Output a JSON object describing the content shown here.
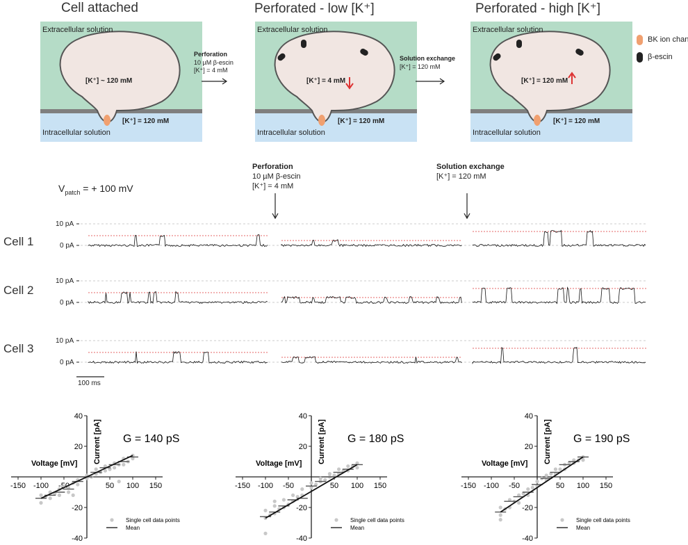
{
  "top": {
    "panels": [
      {
        "title": "Cell attached",
        "extra": "Extracellular solution",
        "intra": "Intracellular solution",
        "inner_conc": "[K⁺] ~ 120 mM",
        "outer_conc": "[K⁺] = 120 mM"
      },
      {
        "title": "Perforated - low [K⁺]",
        "extra": "Extracellular solution",
        "intra": "Intracellular solution",
        "inner_conc": "[K⁺] = 4 mM",
        "outer_conc": "[K⁺] = 120 mM"
      },
      {
        "title": "Perforated - high [K⁺]",
        "extra": "Extracellular solution",
        "intra": "Intracellular solution",
        "inner_conc": "[K⁺] = 120 mM",
        "outer_conc": "[K⁺] = 120 mM"
      }
    ],
    "arrow1": {
      "title": "Perforation",
      "line1": "10 µM β-escin",
      "line2": "[K⁺] = 4 mM"
    },
    "arrow2": {
      "title": "Solution exchange",
      "line1": "[K⁺] = 120 mM"
    },
    "legend": {
      "channel": "BK ion channel",
      "escin": "β-escin"
    },
    "colors": {
      "extra": "#b5dcc7",
      "intra": "#c9e2f4",
      "cell": "#f1e6e2",
      "channel": "#f0a070",
      "membrane": "#7f7f7f"
    }
  },
  "traces": {
    "vpatch": {
      "v": "V",
      "sub": "patch",
      "rest": " = + 100 mV"
    },
    "perforation": {
      "title": "Perforation",
      "line1": "10 µM β-escin",
      "line2": "[K⁺] = 4 mM"
    },
    "exchange": {
      "title": "Solution exchange",
      "line1": "[K⁺] = 120 mM"
    },
    "cells": [
      {
        "label": "Cell 1",
        "top_tick": "10 pA",
        "bottom_tick": "0 pA"
      },
      {
        "label": "Cell 2",
        "top_tick": "10 pA",
        "bottom_tick": "0 pA"
      },
      {
        "label": "Cell 3",
        "top_tick": "10 pA",
        "bottom_tick": "0 pA"
      }
    ],
    "scale_bar": "100 ms"
  },
  "chart_data": [
    {
      "type": "scatter",
      "title": "G = 140 pS",
      "xlabel": "Voltage [mV]",
      "ylabel": "Current [pA]",
      "xlim": [
        -150,
        150
      ],
      "ylim": [
        -40,
        40
      ],
      "xticks": [
        "-150",
        "-100",
        "-50",
        "50",
        "100",
        "150"
      ],
      "yticks": [
        "40",
        "20",
        "-20",
        "-40"
      ],
      "legend": [
        "Single cell data points",
        "Mean"
      ],
      "fit": {
        "x": [
          -100,
          100
        ],
        "y": [
          -14,
          14
        ]
      },
      "series": [
        {
          "name": "Single cell data points",
          "x": [
            -100,
            -100,
            -80,
            -80,
            -60,
            -60,
            -40,
            -40,
            -20,
            -20,
            0,
            0,
            20,
            20,
            40,
            40,
            60,
            60,
            80,
            80,
            100,
            100,
            -90,
            -70,
            -50,
            -30,
            10,
            30,
            50,
            70,
            90,
            -30,
            70
          ],
          "y": [
            -17,
            -12,
            -14,
            -10,
            -12,
            -8,
            -7,
            -10,
            -5,
            -2,
            -1,
            1,
            2,
            5,
            4,
            7,
            6,
            9,
            8,
            12,
            12,
            14,
            -13,
            -11,
            -6,
            -4,
            0,
            3,
            5,
            8,
            10,
            -12,
            -3
          ]
        },
        {
          "name": "Mean",
          "x": [
            -100,
            -80,
            -60,
            -40,
            -20,
            0,
            20,
            40,
            60,
            80,
            100
          ],
          "y": [
            -14,
            -12,
            -10,
            -8,
            -3,
            0,
            3,
            6,
            8,
            10,
            13
          ]
        }
      ]
    },
    {
      "type": "scatter",
      "title": "G = 180 pS",
      "xlabel": "Voltage [mV]",
      "ylabel": "Current [pA]",
      "xlim": [
        -150,
        150
      ],
      "ylim": [
        -40,
        40
      ],
      "xticks": [
        "-150",
        "-100",
        "-50",
        "50",
        "100",
        "150"
      ],
      "yticks": [
        "40",
        "20",
        "-20",
        "-40"
      ],
      "legend": [
        "Single cell data points",
        "Mean"
      ],
      "fit": {
        "x": [
          -100,
          100
        ],
        "y": [
          -27,
          8
        ]
      },
      "series": [
        {
          "name": "Single cell data points",
          "x": [
            -100,
            -100,
            -80,
            -80,
            -60,
            -60,
            -40,
            -40,
            -20,
            -20,
            0,
            0,
            20,
            20,
            40,
            40,
            60,
            60,
            80,
            80,
            100,
            100,
            -90,
            -70,
            -50,
            -30,
            10,
            30,
            50,
            70,
            90,
            -100,
            -80
          ],
          "y": [
            -27,
            -22,
            -24,
            -19,
            -20,
            -15,
            -16,
            -12,
            -12,
            -8,
            -7,
            -4,
            -3,
            -1,
            0,
            2,
            2,
            5,
            4,
            7,
            6,
            9,
            -25,
            -21,
            -18,
            -13,
            -5,
            -2,
            1,
            4,
            7,
            -37,
            -16
          ]
        },
        {
          "name": "Mean",
          "x": [
            -100,
            -80,
            -60,
            -40,
            -20,
            0,
            20,
            40,
            60,
            80,
            100
          ],
          "y": [
            -26,
            -23,
            -19,
            -15,
            -14,
            -6,
            -3,
            0,
            3,
            5,
            8
          ]
        }
      ]
    },
    {
      "type": "scatter",
      "title": "G = 190 pS",
      "xlabel": "Voltage [mV]",
      "ylabel": "Current [pA]",
      "xlim": [
        -150,
        150
      ],
      "ylim": [
        -40,
        40
      ],
      "xticks": [
        "-150",
        "-100",
        "-50",
        "50",
        "100",
        "150"
      ],
      "yticks": [
        "40",
        "20",
        "-20",
        "-40"
      ],
      "legend": [
        "Single cell data points",
        "Mean"
      ],
      "fit": {
        "x": [
          -80,
          100
        ],
        "y": [
          -23,
          13
        ]
      },
      "series": [
        {
          "name": "Single cell data points",
          "x": [
            -80,
            -80,
            -60,
            -60,
            -40,
            -40,
            -20,
            -20,
            0,
            0,
            20,
            20,
            40,
            40,
            60,
            60,
            80,
            80,
            100,
            100,
            -70,
            -50,
            -30,
            -10,
            10,
            30,
            50,
            70,
            90,
            -80
          ],
          "y": [
            -25,
            -20,
            -20,
            -15,
            -17,
            -12,
            -12,
            -8,
            -6,
            -3,
            -2,
            1,
            2,
            5,
            5,
            8,
            9,
            11,
            11,
            13,
            -21,
            -16,
            -11,
            -7,
            -1,
            2,
            5,
            9,
            11,
            -28
          ]
        },
        {
          "name": "Mean",
          "x": [
            -80,
            -60,
            -40,
            -20,
            0,
            20,
            40,
            60,
            80,
            100
          ],
          "y": [
            -23,
            -16,
            -13,
            -10,
            -5,
            -1,
            3,
            8,
            10,
            13
          ]
        }
      ]
    }
  ]
}
